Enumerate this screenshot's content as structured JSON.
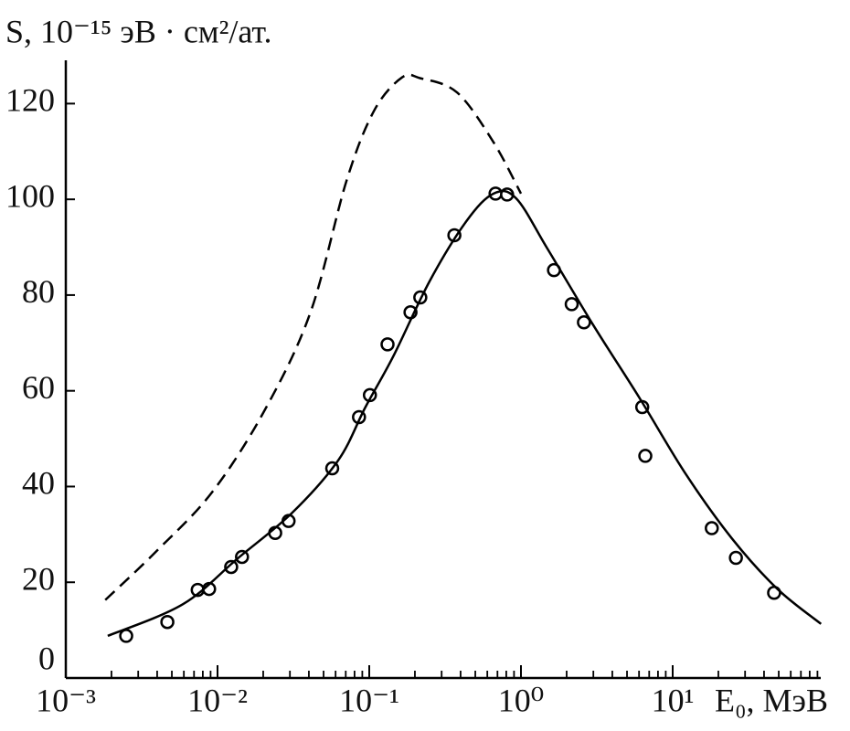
{
  "chart_data": {
    "type": "scatter",
    "title": "S, 10⁻¹⁵ эВ · см²/ат.",
    "x_label": "E₀, МэВ",
    "log_x": true,
    "xlim": [
      0.001,
      100
    ],
    "ylim": [
      0,
      130
    ],
    "xticks": [
      {
        "value": 0.001,
        "label": "10⁻³"
      },
      {
        "value": 0.01,
        "label": "10⁻²"
      },
      {
        "value": 0.1,
        "label": "10⁻¹"
      },
      {
        "value": 1,
        "label": "10⁰"
      },
      {
        "value": 10,
        "label": "10¹"
      }
    ],
    "x_minor_ticks": [
      0.002,
      0.003,
      0.004,
      0.005,
      0.006,
      0.007,
      0.008,
      0.009,
      0.02,
      0.03,
      0.04,
      0.05,
      0.06,
      0.07,
      0.08,
      0.09,
      0.2,
      0.3,
      0.4,
      0.5,
      0.6,
      0.7,
      0.8,
      0.9,
      2,
      3,
      4,
      5,
      6,
      7,
      8,
      9,
      20,
      30,
      40,
      50,
      60,
      70,
      80,
      90
    ],
    "yticks": [
      0,
      20,
      40,
      60,
      80,
      100,
      120
    ],
    "series": [
      {
        "style": "points",
        "color": "#000000",
        "x": [
          0.0025,
          0.00467,
          0.0074,
          0.0088,
          0.0123,
          0.0145,
          0.024,
          0.0294,
          0.057,
          0.0856,
          0.101,
          0.132,
          0.187,
          0.217,
          0.364,
          0.68,
          0.81,
          1.65,
          2.16,
          2.6,
          6.3,
          6.6,
          18.1,
          26.1,
          46.6
        ],
        "values": [
          8.8,
          11.7,
          18.4,
          18.6,
          23.2,
          25.3,
          30.3,
          32.8,
          43.8,
          54.5,
          59.1,
          69.7,
          76.4,
          79.5,
          92.5,
          101.2,
          101.0,
          85.2,
          78.1,
          74.3,
          56.6,
          46.4,
          31.3,
          25.1,
          17.8
        ]
      },
      {
        "style": "solid",
        "color": "#000000",
        "x": [
          0.00189,
          0.0059,
          0.0136,
          0.031,
          0.0625,
          0.0944,
          0.144,
          0.25,
          0.436,
          0.66,
          0.93,
          1.5,
          3.0,
          6.1,
          12.2,
          24.5,
          49,
          95
        ],
        "values": [
          8.8,
          15.4,
          25.0,
          34.5,
          45.5,
          56.6,
          67.2,
          82.9,
          95.4,
          101.2,
          100.2,
          89.6,
          73.7,
          58.3,
          42.6,
          29.2,
          18.6,
          11.3
        ]
      },
      {
        "style": "dashed",
        "color": "#000000",
        "x": [
          0.00182,
          0.0039,
          0.0092,
          0.0205,
          0.041,
          0.071,
          0.108,
          0.165,
          0.217,
          0.38,
          0.66,
          1.0
        ],
        "values": [
          16.3,
          26.3,
          38.8,
          56.0,
          76.4,
          104,
          118.6,
          125.5,
          125.3,
          122.3,
          111.9,
          101.2
        ]
      }
    ]
  }
}
